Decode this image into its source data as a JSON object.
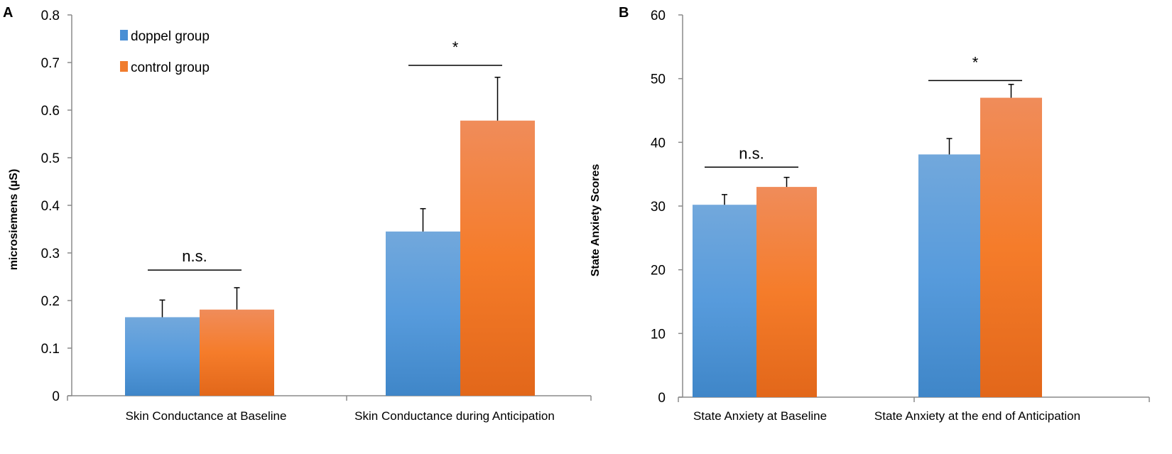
{
  "chart_data": [
    {
      "type": "bar",
      "panel_label": "A",
      "title": "",
      "xlabel": "",
      "ylabel": "microsiemens (µS)",
      "ylim": [
        0,
        0.8
      ],
      "yticks": [
        0,
        0.1,
        0.2,
        0.3,
        0.4,
        0.5,
        0.6,
        0.7,
        0.8
      ],
      "ytick_labels": [
        "0",
        "0.1",
        "0.2",
        "0.3",
        "0.4",
        "0.5",
        "0.6",
        "0.7",
        "0.8"
      ],
      "categories": [
        "Skin Conductance at Baseline",
        "Skin Conductance during Anticipation"
      ],
      "series": [
        {
          "name": "doppel  group",
          "values": [
            0.165,
            0.345
          ],
          "error": [
            0.036,
            0.048
          ],
          "color": "#4a8fd4"
        },
        {
          "name": "control group",
          "values": [
            0.181,
            0.578
          ],
          "error": [
            0.046,
            0.091
          ],
          "color": "#f07c2e"
        }
      ],
      "significance": [
        {
          "category": 0,
          "label": "n.s.",
          "level": 0.264
        },
        {
          "category": 1,
          "label": "*",
          "level": 0.694
        }
      ],
      "legend": {
        "placement": "top-left",
        "entries": [
          "doppel  group",
          "control group"
        ]
      },
      "grid": false
    },
    {
      "type": "bar",
      "panel_label": "B",
      "title": "",
      "xlabel": "",
      "ylabel": "State Anxiety Scores",
      "ylim": [
        0,
        60
      ],
      "yticks": [
        0,
        10,
        20,
        30,
        40,
        50,
        60
      ],
      "ytick_labels": [
        "0",
        "10",
        "20",
        "30",
        "40",
        "50",
        "60"
      ],
      "categories": [
        "State Anxiety at Baseline",
        "State Anxiety at the end of Anticipation"
      ],
      "series": [
        {
          "name": "doppel group",
          "values": [
            30.2,
            38.1
          ],
          "error": [
            1.6,
            2.5
          ],
          "color": "#4a8fd4"
        },
        {
          "name": "control group",
          "values": [
            33.0,
            47.0
          ],
          "error": [
            1.5,
            2.1
          ],
          "color": "#f07c2e"
        }
      ],
      "significance": [
        {
          "category": 0,
          "label": "n.s.",
          "level": 36.1
        },
        {
          "category": 1,
          "label": "*",
          "level": 49.7
        }
      ],
      "grid": false
    }
  ]
}
